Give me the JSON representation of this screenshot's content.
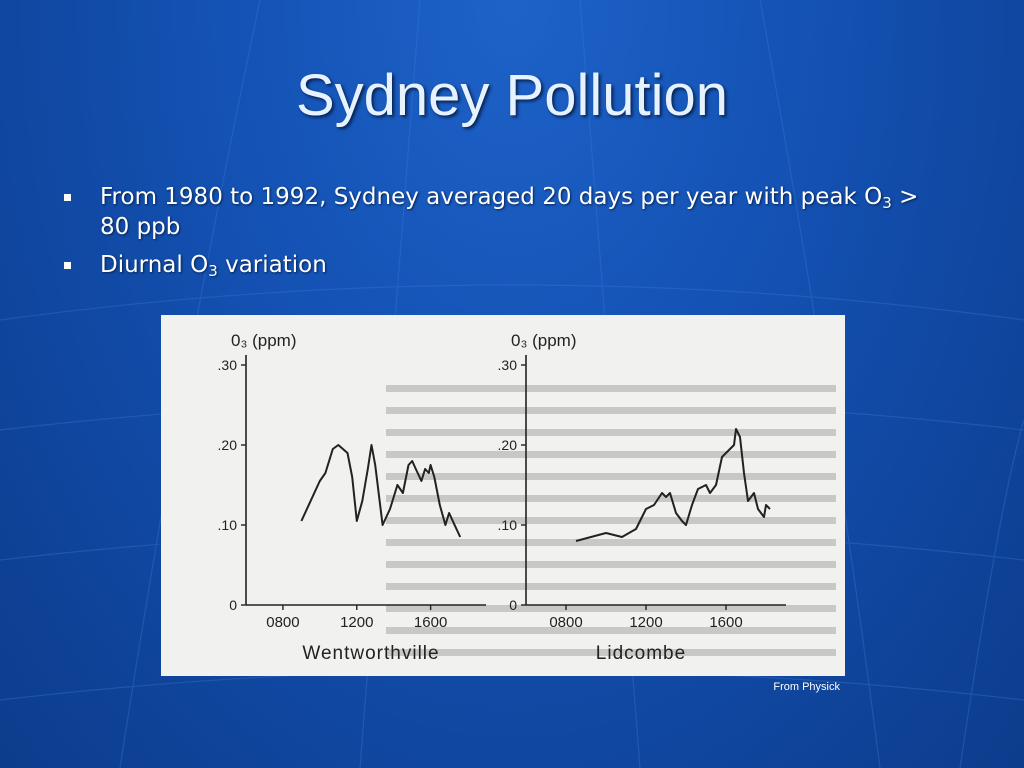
{
  "slide": {
    "title": "Sydney Pollution",
    "bullets": [
      {
        "pre": "From 1980 to 1992, Sydney averaged 20 days per year with peak O",
        "sub": "3",
        "post": " > 80 ppb"
      },
      {
        "pre": "Diurnal O",
        "sub": "3",
        "post": " variation"
      }
    ],
    "caption": "From Physick"
  },
  "colors": {
    "background": "#1452b4",
    "title": "#e6f2ff",
    "text": "#ffffff",
    "plot_ink": "#222222"
  },
  "chart_data": [
    {
      "type": "line",
      "title": "Wentworthville",
      "ylabel": "0₃ (ppm)",
      "ylim": [
        0,
        0.3
      ],
      "yticks": [
        0,
        0.1,
        0.2,
        0.3
      ],
      "ytick_labels": [
        "0",
        ".10",
        ".20",
        ".30"
      ],
      "xlim": [
        600,
        1900
      ],
      "xticks": [
        800,
        1200,
        1600
      ],
      "xtick_labels": [
        "0800",
        "1200",
        "1600"
      ],
      "x": [
        900,
        1000,
        1030,
        1070,
        1100,
        1150,
        1175,
        1200,
        1230,
        1260,
        1280,
        1300,
        1340,
        1380,
        1420,
        1450,
        1480,
        1500,
        1520,
        1550,
        1570,
        1590,
        1600,
        1620,
        1650,
        1680,
        1700,
        1730,
        1760
      ],
      "y": [
        0.105,
        0.155,
        0.165,
        0.195,
        0.2,
        0.19,
        0.16,
        0.105,
        0.13,
        0.17,
        0.2,
        0.175,
        0.1,
        0.12,
        0.15,
        0.14,
        0.175,
        0.18,
        0.17,
        0.155,
        0.17,
        0.165,
        0.175,
        0.16,
        0.125,
        0.1,
        0.115,
        0.1,
        0.085
      ]
    },
    {
      "type": "line",
      "title": "Lidcombe",
      "ylabel": "0₃ (ppm)",
      "ylim": [
        0,
        0.3
      ],
      "yticks": [
        0,
        0.1,
        0.2,
        0.3
      ],
      "ytick_labels": [
        "0",
        ".10",
        ".20",
        ".30"
      ],
      "xlim": [
        600,
        1900
      ],
      "xticks": [
        800,
        1200,
        1600
      ],
      "xtick_labels": [
        "0800",
        "1200",
        "1600"
      ],
      "x": [
        850,
        1000,
        1080,
        1150,
        1200,
        1240,
        1280,
        1300,
        1320,
        1350,
        1380,
        1400,
        1430,
        1460,
        1500,
        1520,
        1550,
        1580,
        1600,
        1640,
        1650,
        1670,
        1690,
        1710,
        1740,
        1760,
        1790,
        1800,
        1820
      ],
      "y": [
        0.08,
        0.09,
        0.085,
        0.095,
        0.12,
        0.125,
        0.14,
        0.135,
        0.14,
        0.115,
        0.105,
        0.1,
        0.125,
        0.145,
        0.15,
        0.14,
        0.15,
        0.185,
        0.19,
        0.2,
        0.22,
        0.21,
        0.165,
        0.13,
        0.14,
        0.12,
        0.11,
        0.125,
        0.12
      ]
    }
  ]
}
